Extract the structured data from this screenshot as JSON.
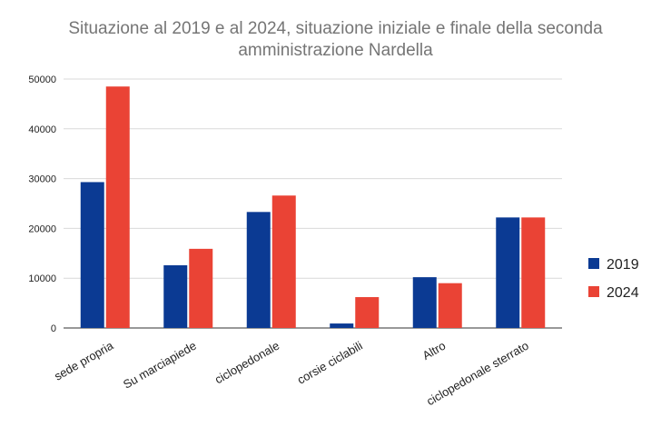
{
  "chart_data": {
    "type": "bar",
    "title_line1": "Situazione al 2019 e al 2024, situazione iniziale e finale della seconda",
    "title_line2": "amministrazione Nardella",
    "categories": [
      "sede propria",
      "Su marciapiede",
      "ciclopedonale",
      "corsie ciclabili",
      "Altro",
      "ciclopedonale sterrato"
    ],
    "series": [
      {
        "name": "2019",
        "color": "#0b3a93",
        "values": [
          29300,
          12600,
          23300,
          900,
          10200,
          22200
        ]
      },
      {
        "name": "2024",
        "color": "#ea4335",
        "values": [
          48500,
          15900,
          26600,
          6200,
          9000,
          22200
        ]
      }
    ],
    "ylim": [
      0,
      50000
    ],
    "yticks": [
      "0",
      "10000",
      "20000",
      "30000",
      "40000",
      "50000"
    ],
    "grid": true,
    "legend": "right"
  }
}
